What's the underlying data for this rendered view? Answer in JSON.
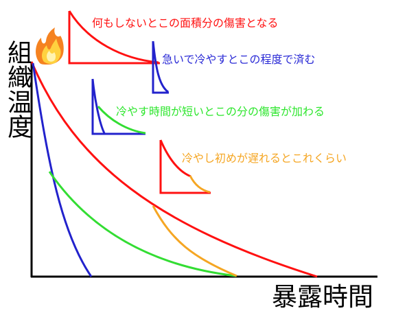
{
  "labels": {
    "y_axis": "組織温度",
    "x_axis": "暴露時間"
  },
  "notes": {
    "red": "何もしないとこの面積分の傷害となる",
    "blue": "急いで冷やすとこの程度で済む",
    "green": "冷やす時間が短いとこの分の傷害が加わる",
    "orange": "冷やし初めが遅れるとこれくらい"
  },
  "icons": {
    "heat": "fire-icon"
  },
  "colors": {
    "red": "#ff1111",
    "blue": "#2222cc",
    "green": "#33dd33",
    "orange": "#f5a623"
  }
}
